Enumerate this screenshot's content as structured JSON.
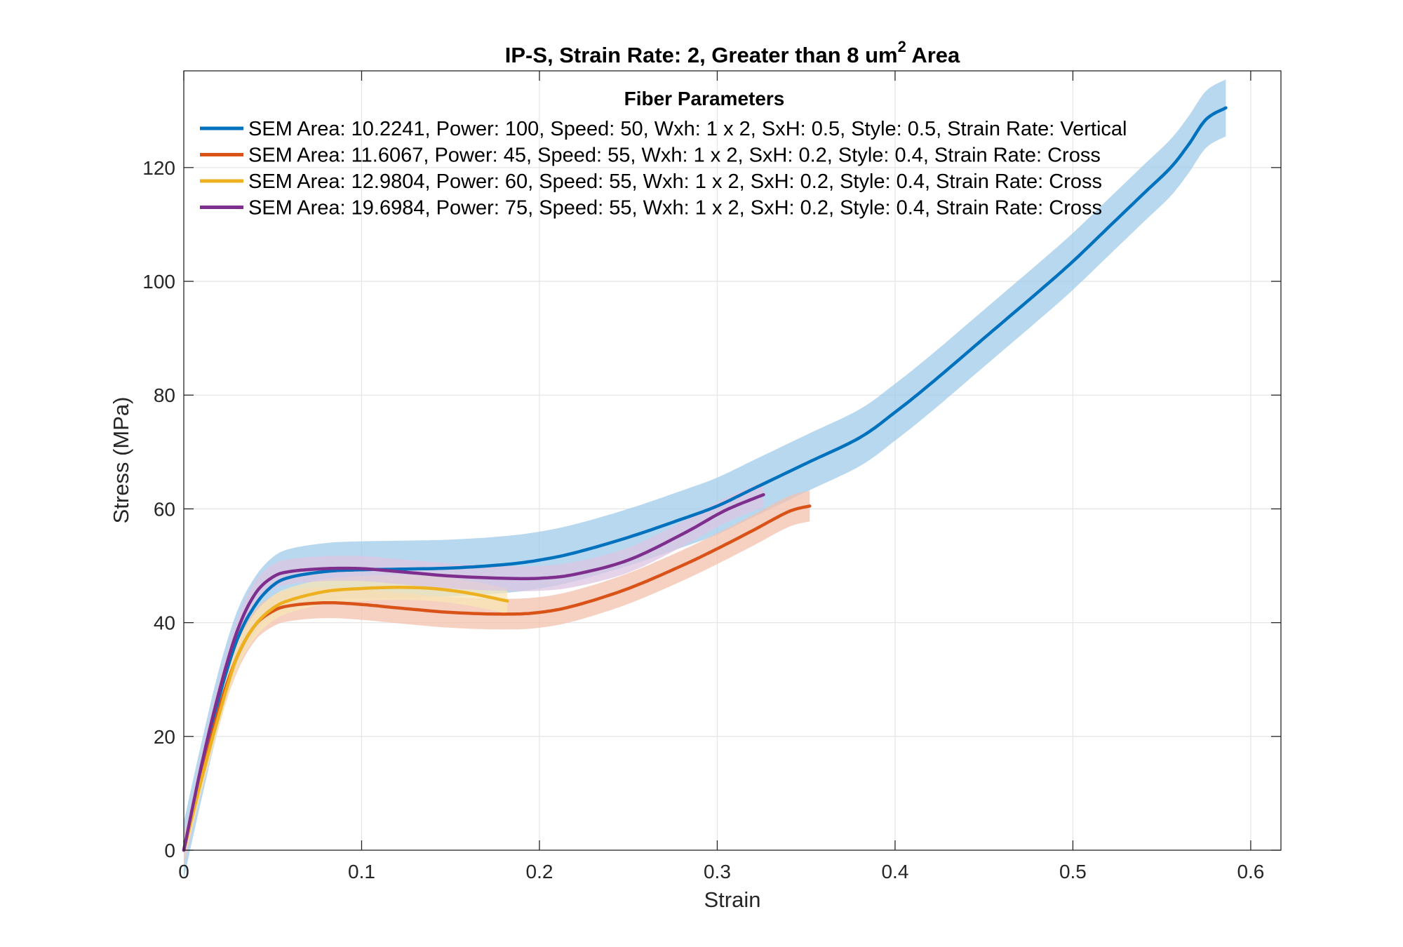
{
  "chart_data": {
    "type": "line",
    "title": {
      "main": "IP-S, Strain Rate: 2, Greater than 8 um",
      "superscript": "2",
      "suffix": " Area"
    },
    "xlabel": "Strain",
    "ylabel": "Stress (MPa)",
    "xlim": [
      0,
      0.617
    ],
    "ylim": [
      0,
      137
    ],
    "xticks": [
      0,
      0.1,
      0.2,
      0.3,
      0.4,
      0.5,
      0.6
    ],
    "xtick_labels": [
      "0",
      "0.1",
      "0.2",
      "0.3",
      "0.4",
      "0.5",
      "0.6"
    ],
    "yticks": [
      0,
      20,
      40,
      60,
      80,
      100,
      120
    ],
    "ytick_labels": [
      "0",
      "20",
      "40",
      "60",
      "80",
      "100",
      "120"
    ],
    "grid": true,
    "legend": {
      "title": "Fiber Parameters",
      "placement": "top"
    },
    "series": [
      {
        "name": "SEM Area: 10.2241, Power: 100, Speed: 50, Wxh: 1 x 2, SxH: 0.5, Style: 0.5, Strain Rate: Vertical",
        "color": "#0072BD",
        "band_color": "#9fcbea",
        "band_halfwidth": 5.0,
        "points": [
          [
            0,
            0
          ],
          [
            0.01,
            14
          ],
          [
            0.02,
            27
          ],
          [
            0.03,
            37
          ],
          [
            0.04,
            43
          ],
          [
            0.05,
            46.5
          ],
          [
            0.06,
            48
          ],
          [
            0.08,
            49
          ],
          [
            0.1,
            49.3
          ],
          [
            0.12,
            49.4
          ],
          [
            0.15,
            49.6
          ],
          [
            0.18,
            50.2
          ],
          [
            0.2,
            51
          ],
          [
            0.22,
            52.3
          ],
          [
            0.25,
            55
          ],
          [
            0.28,
            58.2
          ],
          [
            0.3,
            60.5
          ],
          [
            0.32,
            63.5
          ],
          [
            0.35,
            68
          ],
          [
            0.38,
            72.5
          ],
          [
            0.4,
            77
          ],
          [
            0.42,
            82
          ],
          [
            0.45,
            90
          ],
          [
            0.48,
            98
          ],
          [
            0.5,
            103.5
          ],
          [
            0.52,
            109.5
          ],
          [
            0.54,
            115.5
          ],
          [
            0.555,
            120
          ],
          [
            0.565,
            124
          ],
          [
            0.575,
            128.5
          ],
          [
            0.586,
            130.5
          ]
        ]
      },
      {
        "name": "SEM Area: 11.6067, Power: 45, Speed: 55, Wxh: 1 x 2, SxH: 0.2, Style: 0.4, Strain Rate: Cross",
        "color": "#D95319",
        "band_color": "#f3c2ae",
        "band_halfwidth": 2.7,
        "points": [
          [
            0,
            0
          ],
          [
            0.01,
            13
          ],
          [
            0.02,
            25
          ],
          [
            0.03,
            34
          ],
          [
            0.04,
            39.5
          ],
          [
            0.05,
            42
          ],
          [
            0.06,
            43
          ],
          [
            0.08,
            43.5
          ],
          [
            0.1,
            43.2
          ],
          [
            0.12,
            42.6
          ],
          [
            0.15,
            41.8
          ],
          [
            0.18,
            41.5
          ],
          [
            0.2,
            41.8
          ],
          [
            0.22,
            43
          ],
          [
            0.25,
            46
          ],
          [
            0.28,
            50
          ],
          [
            0.3,
            53
          ],
          [
            0.32,
            56.2
          ],
          [
            0.34,
            59.5
          ],
          [
            0.352,
            60.5
          ]
        ]
      },
      {
        "name": "SEM Area: 12.9804, Power: 60, Speed: 55, Wxh: 1 x 2, SxH: 0.2, Style: 0.4, Strain Rate: Cross",
        "color": "#EDB120",
        "band_color": "#f8e6b6",
        "band_halfwidth": 2.2,
        "points": [
          [
            0,
            0
          ],
          [
            0.01,
            12.5
          ],
          [
            0.02,
            24
          ],
          [
            0.03,
            34
          ],
          [
            0.04,
            39.5
          ],
          [
            0.05,
            42.5
          ],
          [
            0.06,
            44
          ],
          [
            0.08,
            45.5
          ],
          [
            0.1,
            46
          ],
          [
            0.12,
            46.2
          ],
          [
            0.14,
            46
          ],
          [
            0.16,
            45.2
          ],
          [
            0.182,
            43.8
          ]
        ]
      },
      {
        "name": "SEM Area: 19.6984, Power: 75, Speed: 55, Wxh: 1 x 2, SxH: 0.2, Style: 0.4, Strain Rate: Cross",
        "color": "#7E2F8E",
        "band_color": "#dcc5e2",
        "band_halfwidth": 2.2,
        "points": [
          [
            0,
            0
          ],
          [
            0.01,
            15
          ],
          [
            0.02,
            28
          ],
          [
            0.03,
            38.5
          ],
          [
            0.04,
            45
          ],
          [
            0.05,
            48
          ],
          [
            0.06,
            49
          ],
          [
            0.08,
            49.5
          ],
          [
            0.1,
            49.5
          ],
          [
            0.12,
            49
          ],
          [
            0.15,
            48.2
          ],
          [
            0.18,
            47.8
          ],
          [
            0.2,
            47.8
          ],
          [
            0.22,
            48.5
          ],
          [
            0.25,
            51
          ],
          [
            0.28,
            55.5
          ],
          [
            0.3,
            59
          ],
          [
            0.31,
            60.5
          ],
          [
            0.326,
            62.5
          ]
        ]
      }
    ]
  }
}
